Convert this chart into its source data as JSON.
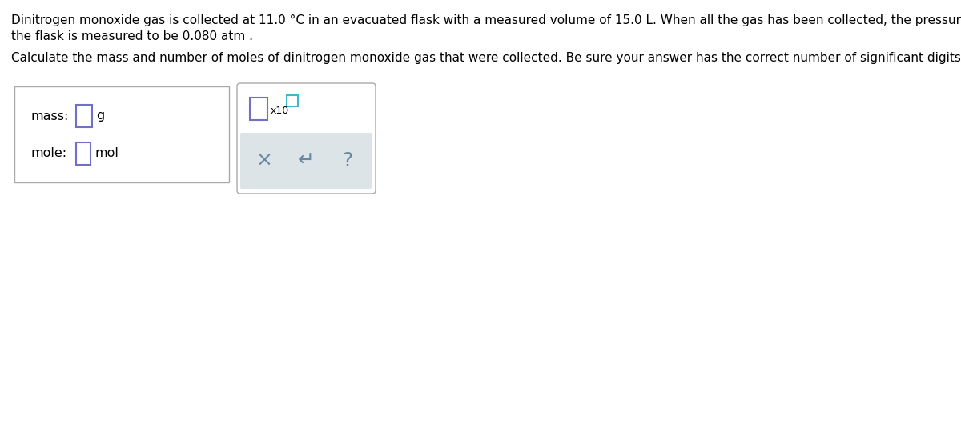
{
  "line1": "Dinitrogen monoxide gas is collected at 11.0 °C in an evacuated flask with a measured volume of 15.0 L. When all the gas has been collected, the pressure in",
  "line2": "the flask is measured to be 0.080 atm .",
  "line3": "Calculate the mass and number of moles of dinitrogen monoxide gas that were collected. Be sure your answer has the correct number of significant digits.",
  "mass_label": "mass:",
  "mole_label": "mole:",
  "g_label": "g",
  "mol_label": "mol",
  "x_symbol": "×",
  "undo_symbol": "↵",
  "help_symbol": "?",
  "x10_label": "x10",
  "bg_color": "#ffffff",
  "text_color": "#000000",
  "box_border_color": "#aaaaaa",
  "input_box_color": "#ffffff",
  "input_box_border_purple": "#7070c8",
  "input_box_border_teal": "#40b8c8",
  "button_area_color": "#dde4e8",
  "button_text_color": "#6888a0",
  "font_size_body": 11.0,
  "font_size_label": 11.5,
  "font_size_button": 18
}
